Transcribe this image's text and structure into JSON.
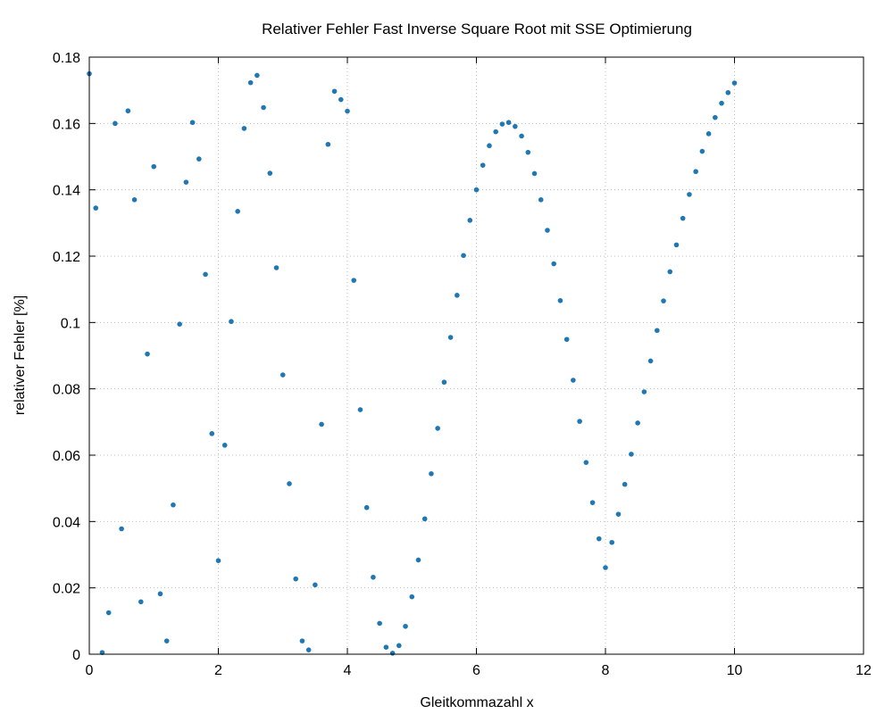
{
  "chart_data": {
    "type": "scatter",
    "title": "Relativer Fehler Fast Inverse Square Root mit SSE Optimierung",
    "xlabel": "Gleitkommazahl x",
    "ylabel": "relativer Fehler [%]",
    "xlim": [
      0,
      12
    ],
    "ylim": [
      0,
      0.18
    ],
    "xticks": [
      0,
      2,
      4,
      6,
      8,
      10,
      12
    ],
    "yticks": [
      0,
      0.02,
      0.04,
      0.06,
      0.08,
      0.1,
      0.12,
      0.14,
      0.16,
      0.18
    ],
    "ytick_labels": [
      "0",
      "0.02",
      "0.04",
      "0.06",
      "0.08",
      "0.1",
      "0.12",
      "0.14",
      "0.16",
      "0.18"
    ],
    "grid": true,
    "legend": "none",
    "point_color": "#1f77b4",
    "series": [
      {
        "x": [
          0.0,
          0.1,
          0.2,
          0.3,
          0.4,
          0.5,
          0.6,
          0.7,
          0.8,
          0.9,
          1.0,
          1.1,
          1.2,
          1.3,
          1.4,
          1.5,
          1.6,
          1.7,
          1.8,
          1.9,
          2.0,
          2.1,
          2.2,
          2.3,
          2.4,
          2.5,
          2.6,
          2.7,
          2.8,
          2.9,
          3.0,
          3.1,
          3.2,
          3.3,
          3.4,
          3.5,
          3.6,
          3.7,
          3.8,
          3.9,
          4.0,
          4.1,
          4.2,
          4.3,
          4.4,
          4.5,
          4.6,
          4.7,
          4.8,
          4.9,
          5.0,
          5.1,
          5.2,
          5.3,
          5.4,
          5.5,
          5.6,
          5.7,
          5.8,
          5.9,
          6.0,
          6.1,
          6.2,
          6.3,
          6.4,
          6.5,
          6.6,
          6.7,
          6.8,
          6.9,
          7.0,
          7.1,
          7.2,
          7.3,
          7.4,
          7.5,
          7.6,
          7.7,
          7.8,
          7.9,
          8.0,
          8.1,
          8.2,
          8.3,
          8.4,
          8.5,
          8.6,
          8.7,
          8.8,
          8.9,
          9.0,
          9.1,
          9.2,
          9.3,
          9.4,
          9.5,
          9.6,
          9.7,
          9.8,
          9.9,
          10.0
        ],
        "y": [
          0.175,
          0.1345,
          0.0005,
          0.0125,
          0.16,
          0.0378,
          0.1638,
          0.137,
          0.0158,
          0.0905,
          0.147,
          0.0182,
          0.004,
          0.045,
          0.0995,
          0.1423,
          0.1603,
          0.1493,
          0.1145,
          0.0665,
          0.0282,
          0.063,
          0.1003,
          0.1335,
          0.1585,
          0.1723,
          0.1745,
          0.1648,
          0.145,
          0.1165,
          0.0842,
          0.0514,
          0.0227,
          0.004,
          0.0013,
          0.0209,
          0.0693,
          0.1537,
          0.1697,
          0.1672,
          0.1637,
          0.1127,
          0.0737,
          0.0442,
          0.0232,
          0.0093,
          0.0021,
          0.0003,
          0.0026,
          0.0084,
          0.0173,
          0.0284,
          0.0408,
          0.0544,
          0.0681,
          0.082,
          0.0955,
          0.1082,
          0.1202,
          0.1308,
          0.14,
          0.1474,
          0.1533,
          0.1575,
          0.1598,
          0.1603,
          0.1591,
          0.1562,
          0.1513,
          0.1449,
          0.137,
          0.1278,
          0.1177,
          0.1066,
          0.0949,
          0.0826,
          0.0702,
          0.0578,
          0.0457,
          0.0348,
          0.0261,
          0.0337,
          0.0422,
          0.0512,
          0.0603,
          0.0697,
          0.0791,
          0.0884,
          0.0976,
          0.1065,
          0.1153,
          0.1234,
          0.1314,
          0.1386,
          0.1455,
          0.1516,
          0.1569,
          0.1618,
          0.1661,
          0.1693,
          0.1722
        ]
      }
    ]
  }
}
